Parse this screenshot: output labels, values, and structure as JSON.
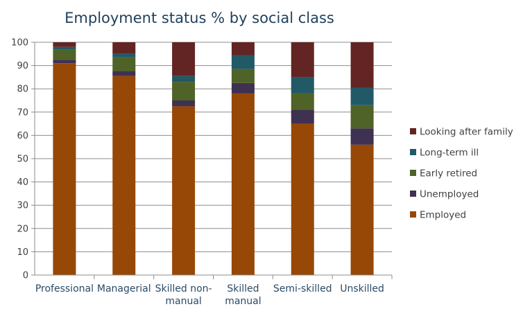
{
  "chart_data": {
    "type": "bar",
    "stacked": true,
    "title": "Employment status % by social class",
    "xlabel": "",
    "ylabel": "",
    "ylim": [
      0,
      100
    ],
    "yticks": [
      0,
      10,
      20,
      30,
      40,
      50,
      60,
      70,
      80,
      90,
      100
    ],
    "grid": true,
    "legend_position": "right",
    "categories": [
      [
        "Professional"
      ],
      [
        "Managerial"
      ],
      [
        "Skilled non-",
        "manual"
      ],
      [
        "Skilled",
        "manual"
      ],
      [
        "Semi-skilled"
      ],
      [
        "Unskilled"
      ]
    ],
    "series": [
      {
        "name": "Employed",
        "color": "#974806",
        "values": [
          91,
          85.5,
          72.5,
          78,
          65,
          56
        ]
      },
      {
        "name": "Unemployed",
        "color": "#3f3151",
        "values": [
          1.5,
          2,
          2.5,
          4.5,
          6,
          7
        ]
      },
      {
        "name": "Early retired",
        "color": "#4f6228",
        "values": [
          4.5,
          6,
          8,
          6,
          7,
          10
        ]
      },
      {
        "name": "Long-term ill",
        "color": "#215967",
        "values": [
          1,
          1.5,
          2.5,
          6,
          7,
          7.5
        ]
      },
      {
        "name": "Looking after family",
        "color": "#632523",
        "values": [
          2,
          5,
          14.5,
          5.5,
          15,
          19.5
        ]
      }
    ]
  }
}
